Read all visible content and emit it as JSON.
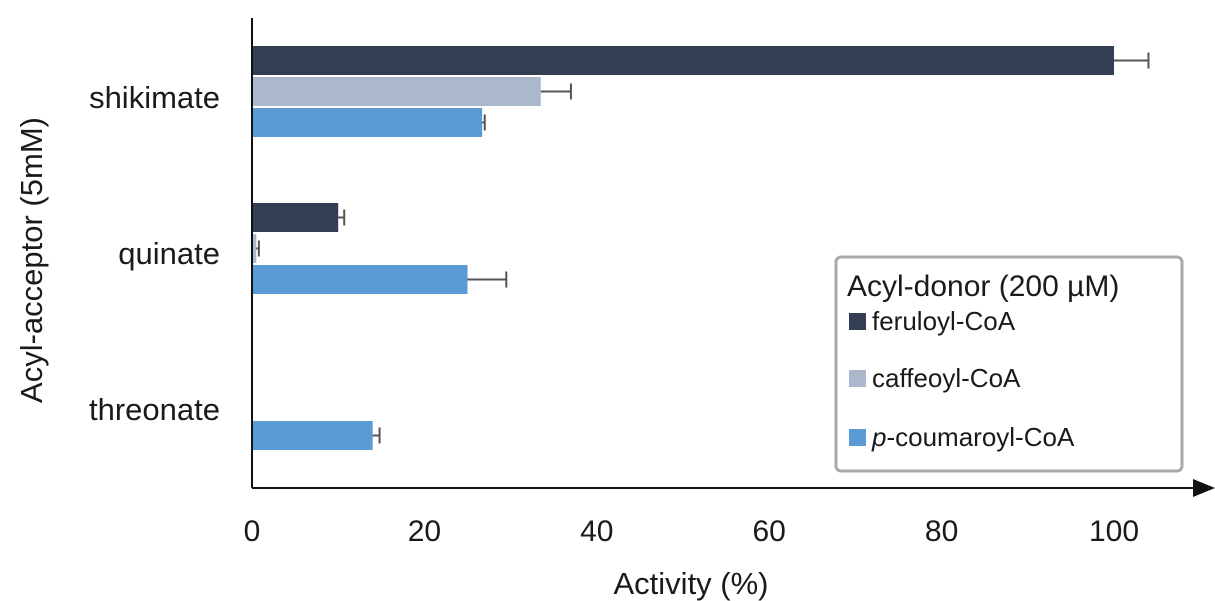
{
  "chart_data": {
    "type": "bar",
    "orientation": "horizontal",
    "xlabel": "Activity (%)",
    "ylabel": "Acyl-acceptor (5mM)",
    "xlim": [
      0,
      110
    ],
    "xticks": [
      "0",
      "20",
      "40",
      "60",
      "80",
      "100"
    ],
    "categories": [
      "shikimate",
      "quinate",
      "threonate"
    ],
    "legend": {
      "title": "Acyl-donor (200 µM)",
      "placement": "bottom-right",
      "entries": [
        {
          "prefix": "",
          "label": "feruloyl-CoA"
        },
        {
          "prefix": "",
          "label": "caffeoyl-CoA"
        },
        {
          "prefix": "p",
          "label": "-coumaroyl-CoA"
        }
      ]
    },
    "series": [
      {
        "name": "feruloyl-CoA",
        "color": "#343e52",
        "values": [
          100,
          10,
          0
        ],
        "errors": [
          4,
          0.7,
          0
        ]
      },
      {
        "name": "caffeoyl-CoA",
        "color": "#abb7cb",
        "values": [
          33.5,
          0.5,
          0
        ],
        "errors": [
          3.5,
          0.3,
          0
        ]
      },
      {
        "name": "p-coumaroyl-CoA",
        "color": "#5b9bd5",
        "values": [
          26.7,
          25,
          14
        ],
        "errors": [
          0.3,
          4.5,
          0.8
        ]
      }
    ],
    "grid": false
  }
}
